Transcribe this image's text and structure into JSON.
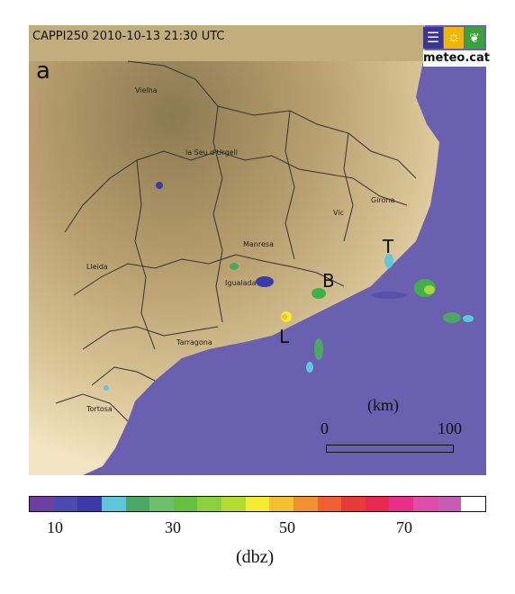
{
  "map": {
    "title": "CAPPI250 2010-10-13 21:30 UTC",
    "panel_letter": "a",
    "colors": {
      "sea": "#6b5fb0",
      "land_high": "#a08a5a",
      "land_low": "#f4e6c4",
      "borders": "#333333"
    }
  },
  "logo": {
    "text": "meteo.cat",
    "icons": [
      "menu-icon",
      "sun-icon",
      "leaf-icon"
    ]
  },
  "places": {
    "vielha": "Vielha",
    "seu": "la Seu d'Urgell",
    "vic": "Vic",
    "girona": "Girona",
    "manresa": "Manresa",
    "lleida": "Lleida",
    "igualada": "Igualada",
    "tarragona": "Tarragona",
    "tortosa": "Tortosa"
  },
  "site_letters": {
    "t": "T",
    "b": "B",
    "l": "L"
  },
  "scale": {
    "unit": "(km)",
    "zero": "0",
    "max": "100"
  },
  "colorbar": {
    "unit": "(dbz)",
    "ticks": [
      "10",
      "30",
      "50",
      "70"
    ],
    "colors": [
      "#6b3fa0",
      "#4a4ab0",
      "#3a3aa8",
      "#5ec8d8",
      "#4aa864",
      "#6cc06c",
      "#66c040",
      "#8cd040",
      "#b4dc30",
      "#f4ec30",
      "#f4c030",
      "#f09030",
      "#f06030",
      "#e83a3a",
      "#e82a50",
      "#e8308a",
      "#e04ca8",
      "#c85cb4",
      "#ffffff"
    ]
  }
}
